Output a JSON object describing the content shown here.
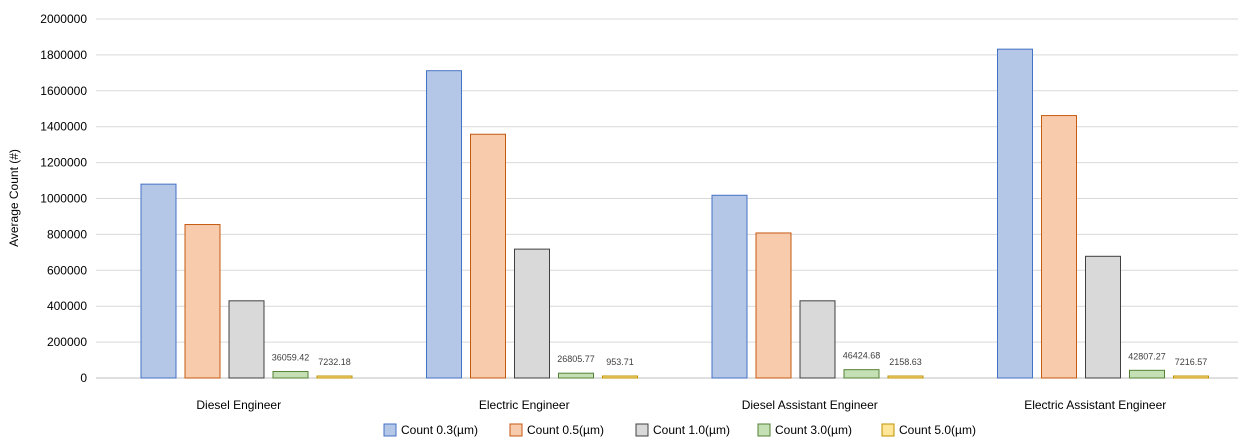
{
  "chart_data": {
    "type": "bar",
    "categories": [
      "Diesel Engineer",
      "Electric Engineer",
      "Diesel Assistant Engineer",
      "Electric Assistant Engineer"
    ],
    "series": [
      {
        "name": "Count 0.3(µm)",
        "values": [
          1080000,
          1712000,
          1018000,
          1832000
        ],
        "fill": "#b4c7e7",
        "stroke": "#4472c4",
        "labels": null
      },
      {
        "name": "Count 0.5(µm)",
        "values": [
          855000,
          1358000,
          808000,
          1462000
        ],
        "fill": "#f8cbad",
        "stroke": "#c55a11",
        "labels": null
      },
      {
        "name": "Count 1.0(µm)",
        "values": [
          430000,
          718000,
          430000,
          678000
        ],
        "fill": "#d9d9d9",
        "stroke": "#404040",
        "labels": null
      },
      {
        "name": "Count 3.0(µm)",
        "values": [
          36059.42,
          26805.77,
          46424.68,
          42807.27
        ],
        "fill": "#c5e0b4",
        "stroke": "#548235",
        "labels": [
          "36059.42",
          "26805.77",
          "46424.68",
          "42807.27"
        ]
      },
      {
        "name": "Count 5.0(µm)",
        "values": [
          7232.18,
          953.71,
          2158.63,
          7216.57
        ],
        "fill": "#ffe699",
        "stroke": "#bf9000",
        "labels": [
          "7232.18",
          "953.71",
          "2158.63",
          "7216.57"
        ]
      }
    ],
    "ylabel": "Average  Count (#)",
    "xlabel": "",
    "ylim": [
      0,
      2000000
    ],
    "yticks": [
      "0",
      "200000",
      "400000",
      "600000",
      "800000",
      "1000000",
      "1200000",
      "1400000",
      "1600000",
      "1800000",
      "2000000"
    ],
    "grid": true,
    "legend_position": "bottom",
    "gridline_color": "#d9d9d9",
    "text_color": "#000000"
  }
}
